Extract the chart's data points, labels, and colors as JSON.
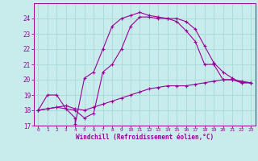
{
  "xlabel": "Windchill (Refroidissement éolien,°C)",
  "xlim": [
    -0.5,
    23.5
  ],
  "ylim": [
    17,
    25
  ],
  "yticks": [
    17,
    18,
    19,
    20,
    21,
    22,
    23,
    24
  ],
  "xticks": [
    0,
    1,
    2,
    3,
    4,
    5,
    6,
    7,
    8,
    9,
    10,
    11,
    12,
    13,
    14,
    15,
    16,
    17,
    18,
    19,
    20,
    21,
    22,
    23
  ],
  "bg_color": "#c8ecec",
  "grid_color": "#a8d8d8",
  "line_color": "#990099",
  "line1_x": [
    0,
    1,
    2,
    3,
    4,
    4,
    5,
    6,
    7,
    8,
    9,
    10,
    11,
    12,
    13,
    14,
    15,
    16,
    17,
    18,
    19,
    20,
    21,
    22,
    23
  ],
  "line1_y": [
    18.0,
    19.0,
    19.0,
    18.1,
    17.5,
    17.1,
    20.1,
    20.5,
    22.0,
    23.5,
    24.0,
    24.2,
    24.4,
    24.2,
    24.1,
    24.0,
    23.8,
    23.2,
    22.5,
    21.0,
    21.0,
    20.0,
    20.0,
    19.8,
    19.8
  ],
  "line2_x": [
    0,
    1,
    2,
    3,
    4,
    5,
    6,
    7,
    8,
    9,
    10,
    11,
    12,
    13,
    14,
    15,
    16,
    17,
    18,
    19,
    20,
    21,
    22,
    23
  ],
  "line2_y": [
    18.0,
    18.1,
    18.2,
    18.1,
    18.0,
    17.5,
    17.8,
    20.5,
    21.0,
    22.0,
    23.5,
    24.1,
    24.1,
    24.0,
    24.0,
    24.0,
    23.8,
    23.3,
    22.2,
    21.1,
    20.5,
    20.1,
    19.8,
    19.8
  ],
  "line3_x": [
    0,
    1,
    2,
    3,
    4,
    5,
    6,
    7,
    8,
    9,
    10,
    11,
    12,
    13,
    14,
    15,
    16,
    17,
    18,
    19,
    20,
    21,
    22,
    23
  ],
  "line3_y": [
    18.0,
    18.1,
    18.2,
    18.3,
    18.1,
    18.0,
    18.2,
    18.4,
    18.6,
    18.8,
    19.0,
    19.2,
    19.4,
    19.5,
    19.6,
    19.6,
    19.6,
    19.7,
    19.8,
    19.9,
    20.0,
    20.0,
    19.9,
    19.8
  ]
}
